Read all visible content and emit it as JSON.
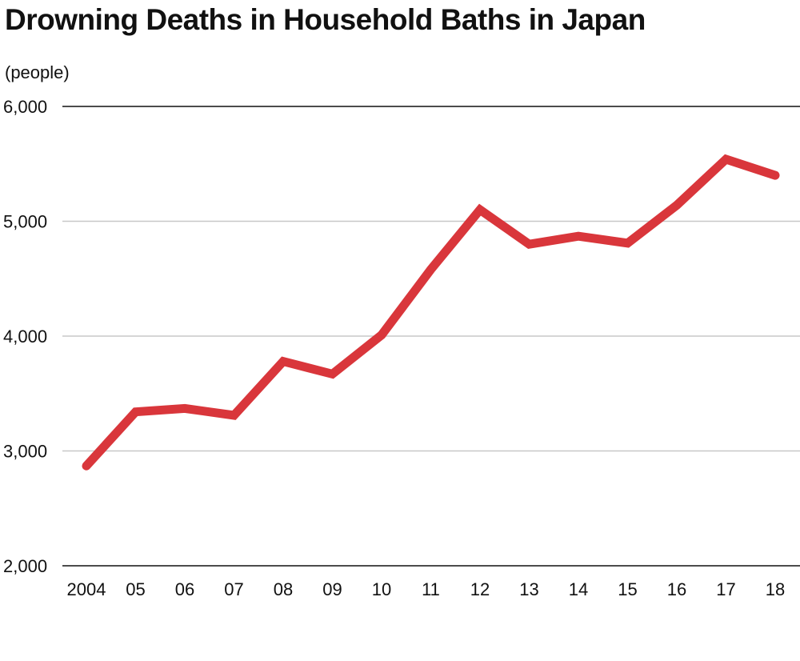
{
  "chart_data": {
    "type": "line",
    "title": "Drowning Deaths in Household Baths in Japan",
    "ylabel": "(people)",
    "ylim": [
      2000,
      6000
    ],
    "yticks": [
      "6,000",
      "5,000",
      "4,000",
      "3,000",
      "2,000"
    ],
    "ytick_values": [
      6000,
      5000,
      4000,
      3000,
      2000
    ],
    "categories": [
      "2004",
      "05",
      "06",
      "07",
      "08",
      "09",
      "10",
      "11",
      "12",
      "13",
      "14",
      "15",
      "16",
      "17",
      "18"
    ],
    "series": [
      {
        "color": "#d9363b",
        "values": [
          2870,
          3340,
          3370,
          3310,
          3780,
          3670,
          4010,
          4580,
          5100,
          4800,
          4870,
          4810,
          5140,
          5540,
          5400
        ]
      }
    ],
    "grid": true
  }
}
